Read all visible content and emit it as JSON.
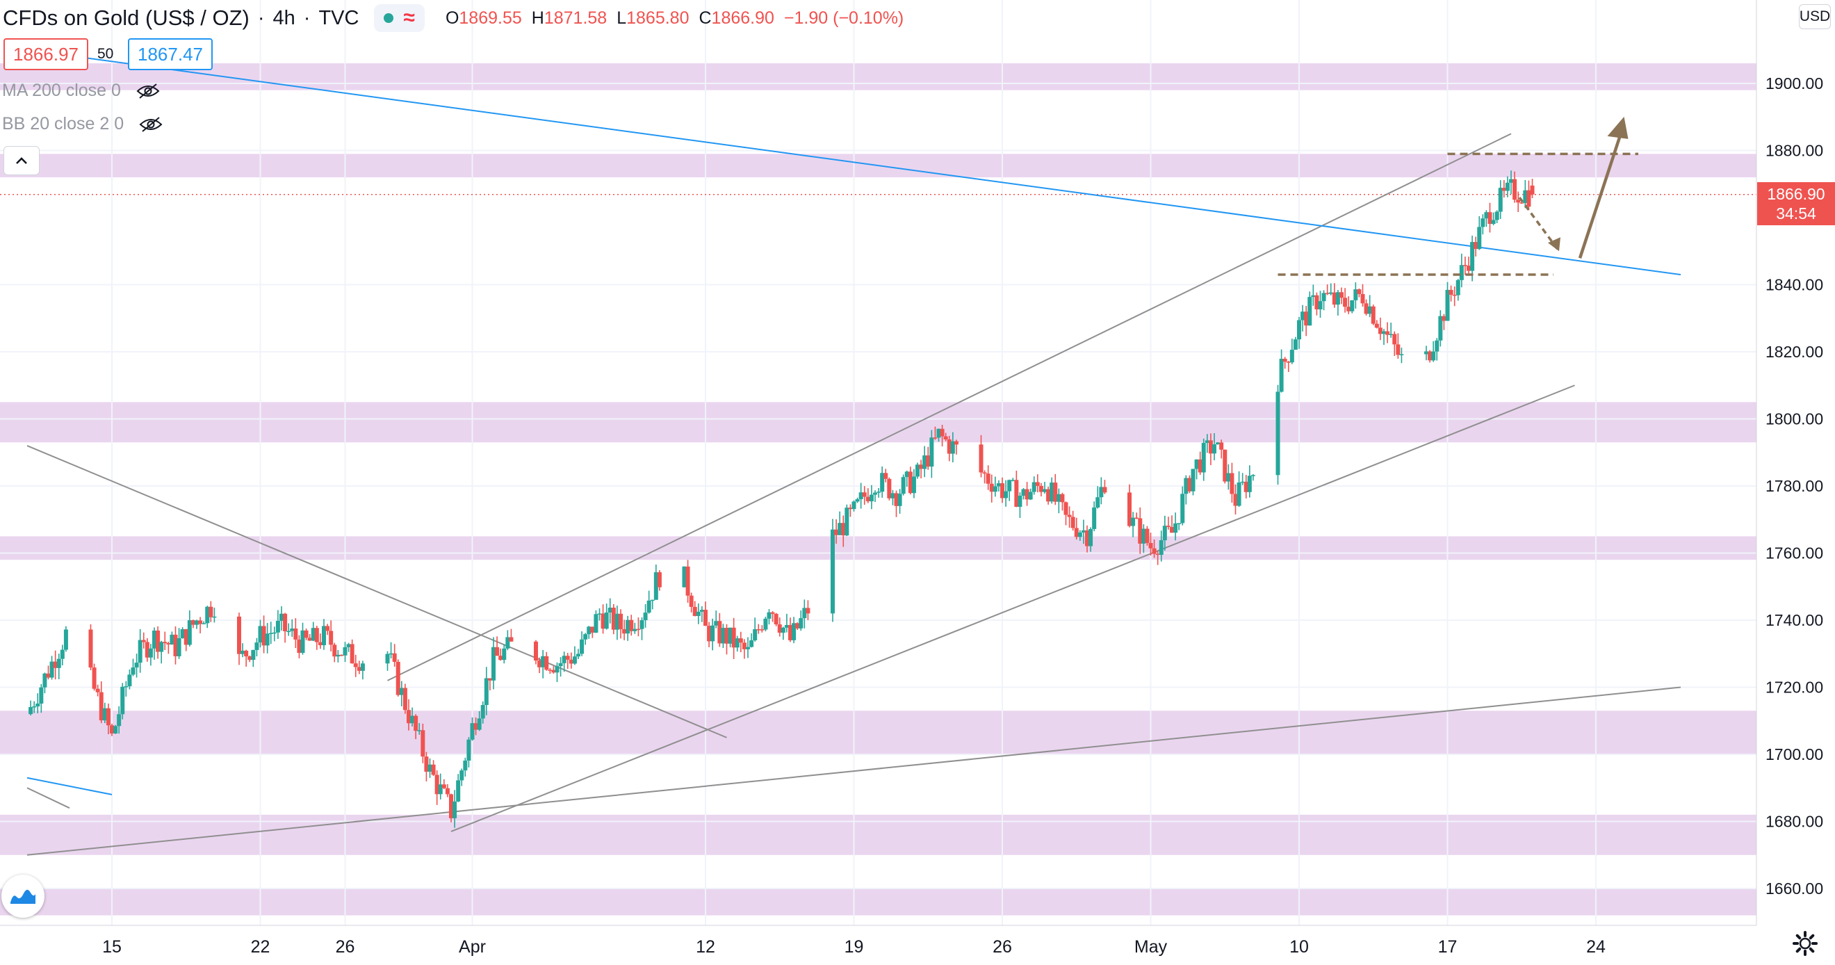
{
  "header": {
    "symbol": "CFDs on Gold (US$ / OZ)",
    "interval": "4h",
    "source": "TVC",
    "ohlc": {
      "o_label": "O",
      "o": "1869.55",
      "h_label": "H",
      "h": "1871.58",
      "l_label": "L",
      "l": "1865.80",
      "c_label": "C",
      "c": "1866.90",
      "change": "−1.90 (−0.10%)"
    }
  },
  "trade": {
    "sell": "1866.97",
    "spread": "50",
    "buy": "1867.47"
  },
  "indicators": [
    {
      "label": "MA 200 close 0"
    },
    {
      "label": "BB 20 close 2 0"
    }
  ],
  "currency_button": "USD",
  "last_price": {
    "value": "1866.90",
    "countdown": "34:54"
  },
  "colors": {
    "up": "#26a69a",
    "down": "#ef5350",
    "zone": "#e1c3e8",
    "trendline": "#8f8f8f",
    "blue_line": "#2196f3",
    "annotation": "#8b7355",
    "price_line": "#ef5350"
  },
  "icons": [
    "eye-off-icon",
    "chevron-up-icon",
    "tradingview-logo-icon",
    "gear-icon"
  ],
  "chart_data": {
    "type": "candlestick",
    "timeframe": "4h",
    "y_axis": {
      "ticks": [
        "1900.00",
        "1880.00",
        "1840.00",
        "1820.00",
        "1800.00",
        "1780.00",
        "1760.00",
        "1740.00",
        "1720.00",
        "1700.00",
        "1680.00",
        "1660.00"
      ],
      "range": [
        1650,
        1904
      ]
    },
    "x_axis": {
      "ticks": [
        "15",
        "22",
        "26",
        "Apr",
        "12",
        "19",
        "26",
        "May",
        "10",
        "17",
        "24"
      ],
      "ticks_date": [
        "2021-03-15",
        "2021-03-22",
        "2021-03-26",
        "2021-04-01",
        "2021-04-12",
        "2021-04-19",
        "2021-04-26",
        "2021-05-03",
        "2021-05-10",
        "2021-05-17",
        "2021-05-24"
      ]
    },
    "close_path": [
      [
        "2021-03-11",
        1712
      ],
      [
        "2021-03-12",
        1725
      ],
      [
        "2021-03-13",
        1738
      ],
      [
        "2021-03-14",
        1722
      ],
      [
        "2021-03-15",
        1705
      ],
      [
        "2021-03-16",
        1728
      ],
      [
        "2021-03-17",
        1735
      ],
      [
        "2021-03-18",
        1732
      ],
      [
        "2021-03-19",
        1740
      ],
      [
        "2021-03-20",
        1746
      ],
      [
        "2021-03-21",
        1728
      ],
      [
        "2021-03-22",
        1735
      ],
      [
        "2021-03-23",
        1738
      ],
      [
        "2021-03-24",
        1733
      ],
      [
        "2021-03-25",
        1735
      ],
      [
        "2021-03-26",
        1730
      ],
      [
        "2021-03-27",
        1728
      ],
      [
        "2021-03-28",
        1730
      ],
      [
        "2021-03-29",
        1712
      ],
      [
        "2021-03-30",
        1695
      ],
      [
        "2021-03-31",
        1683
      ],
      [
        "2021-04-01",
        1708
      ],
      [
        "2021-04-02",
        1728
      ],
      [
        "2021-04-03",
        1733
      ],
      [
        "2021-04-05",
        1727
      ],
      [
        "2021-04-06",
        1730
      ],
      [
        "2021-04-07",
        1742
      ],
      [
        "2021-04-08",
        1738
      ],
      [
        "2021-04-09",
        1742
      ],
      [
        "2021-04-10",
        1756
      ],
      [
        "2021-04-11",
        1752
      ],
      [
        "2021-04-12",
        1737
      ],
      [
        "2021-04-13",
        1735
      ],
      [
        "2021-04-14",
        1730
      ],
      [
        "2021-04-15",
        1745
      ],
      [
        "2021-04-16",
        1734
      ],
      [
        "2021-04-17",
        1745
      ],
      [
        "2021-04-18",
        1765
      ],
      [
        "2021-04-19",
        1772
      ],
      [
        "2021-04-20",
        1782
      ],
      [
        "2021-04-21",
        1778
      ],
      [
        "2021-04-22",
        1783
      ],
      [
        "2021-04-23",
        1795
      ],
      [
        "2021-04-24",
        1790
      ],
      [
        "2021-04-25",
        1784
      ],
      [
        "2021-04-26",
        1779
      ],
      [
        "2021-04-27",
        1777
      ],
      [
        "2021-04-28",
        1781
      ],
      [
        "2021-04-29",
        1770
      ],
      [
        "2021-04-30",
        1766
      ],
      [
        "2021-05-01",
        1785
      ],
      [
        "2021-05-02",
        1770
      ],
      [
        "2021-05-03",
        1762
      ],
      [
        "2021-05-04",
        1766
      ],
      [
        "2021-05-05",
        1785
      ],
      [
        "2021-05-06",
        1793
      ],
      [
        "2021-05-07",
        1776
      ],
      [
        "2021-05-08",
        1786
      ],
      [
        "2021-05-09",
        1812
      ],
      [
        "2021-05-10",
        1828
      ],
      [
        "2021-05-11",
        1837
      ],
      [
        "2021-05-12",
        1834
      ],
      [
        "2021-05-13",
        1837
      ],
      [
        "2021-05-14",
        1826
      ],
      [
        "2021-05-15",
        1816
      ],
      [
        "2021-05-16",
        1818
      ],
      [
        "2021-05-17",
        1835
      ],
      [
        "2021-05-18",
        1848
      ],
      [
        "2021-05-19",
        1862
      ],
      [
        "2021-05-20",
        1868
      ],
      [
        "2021-05-21",
        1866.9
      ]
    ],
    "last_candle": {
      "open": 1869.55,
      "high": 1871.58,
      "low": 1865.8,
      "close": 1866.9,
      "change": -1.9,
      "change_pct": -0.1
    },
    "zones": [
      [
        1898,
        1906
      ],
      [
        1872,
        1879
      ],
      [
        1793,
        1805
      ],
      [
        1758,
        1765
      ],
      [
        1700,
        1713
      ],
      [
        1670,
        1682
      ],
      [
        1652,
        1660
      ]
    ],
    "levels": {
      "dashed_resistance": 1879,
      "dashed_support": 1843
    },
    "trendlines": [
      {
        "color": "gray",
        "from": [
          "2021-03-28",
          1722
        ],
        "to": [
          "2021-05-20",
          1885
        ]
      },
      {
        "color": "gray",
        "from": [
          "2021-03-31",
          1677
        ],
        "to": [
          "2021-05-23",
          1810
        ]
      },
      {
        "color": "gray",
        "from": [
          "2021-03-11",
          1670
        ],
        "to": [
          "2021-05-28",
          1720
        ]
      },
      {
        "color": "gray",
        "from": [
          "2021-03-11",
          1792
        ],
        "to": [
          "2021-04-13",
          1705
        ]
      },
      {
        "color": "gray",
        "from": [
          "2021-03-11",
          1690
        ],
        "to": [
          "2021-03-13",
          1684
        ]
      },
      {
        "color": "blue",
        "from": [
          "2021-03-11",
          1910
        ],
        "to": [
          "2021-05-28",
          1843
        ]
      },
      {
        "color": "blue",
        "from": [
          "2021-03-11",
          1693
        ],
        "to": [
          "2021-03-15",
          1688
        ]
      }
    ],
    "projection": [
      [
        "2021-05-20",
        1866
      ],
      [
        "2021-05-22",
        1850
      ],
      [
        "2021-05-25",
        1888
      ]
    ]
  }
}
